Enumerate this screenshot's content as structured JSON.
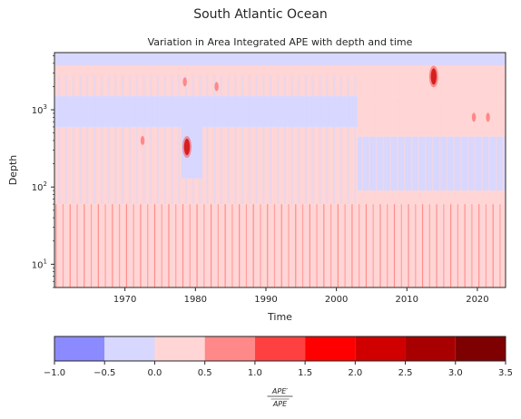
{
  "figure": {
    "suptitle": "South Atlantic Ocean"
  },
  "chart_data": {
    "type": "heatmap",
    "title": "Variation in Area Integrated APE with depth and time",
    "xlabel": "Time",
    "ylabel": "Depth",
    "x_ticks": [
      "1970",
      "1980",
      "1990",
      "2000",
      "2010",
      "2020"
    ],
    "x_tick_values": [
      1970,
      1980,
      1990,
      2000,
      2010,
      2020
    ],
    "xlim": [
      1960,
      2024
    ],
    "y_scale": "log",
    "y_ticks": [
      "10^1",
      "10^2",
      "10^3"
    ],
    "y_tick_values": [
      10,
      100,
      1000
    ],
    "ylim": [
      5,
      5500
    ],
    "colorbar": {
      "label": "APE′ / APE (overlined)",
      "label_numerator": "APE′",
      "label_denominator": "APE",
      "levels": [
        -1.0,
        -0.5,
        0.0,
        0.5,
        1.0,
        1.5,
        2.0,
        2.5,
        3.0,
        3.5
      ],
      "tick_labels": [
        "−1.0",
        "−0.5",
        "0.0",
        "0.5",
        "1.0",
        "1.5",
        "2.0",
        "2.5",
        "3.0",
        "3.5"
      ],
      "colors": [
        "#8b8bff",
        "#d7d7ff",
        "#ffd5d5",
        "#ff8888",
        "#ff4040",
        "#ff0000",
        "#d00000",
        "#a80000",
        "#7f0000"
      ]
    },
    "regions": [
      {
        "t0": 1960,
        "t1": 2024,
        "d0": 5,
        "d1": 60,
        "value": 0.25
      },
      {
        "t0": 1960,
        "t1": 2003,
        "d0": 60,
        "d1": 600,
        "value": 0.25
      },
      {
        "t0": 1960,
        "t1": 2003,
        "d0": 600,
        "d1": 1500,
        "value": -0.25
      },
      {
        "t0": 1960,
        "t1": 2024,
        "d0": 1500,
        "d1": 5500,
        "value": 0.25
      },
      {
        "t0": 2003,
        "t1": 2024,
        "d0": 60,
        "d1": 90,
        "value": 0.25
      },
      {
        "t0": 2003,
        "t1": 2024,
        "d0": 90,
        "d1": 450,
        "value": -0.25
      },
      {
        "t0": 2003,
        "t1": 2024,
        "d0": 450,
        "d1": 1500,
        "value": 0.25
      },
      {
        "t0": 1960,
        "t1": 2024,
        "d0": 3800,
        "d1": 5500,
        "value": -0.25
      },
      {
        "t0": 1978,
        "t1": 1981,
        "d0": 130,
        "d1": 600,
        "value": -0.25
      }
    ],
    "hotspots": [
      {
        "t": 1978.8,
        "d": 330,
        "value": 2.6
      },
      {
        "t": 2013.8,
        "d": 2700,
        "value": 2.6
      },
      {
        "t": 1972.5,
        "d": 400,
        "value": 0.9
      },
      {
        "t": 1978.5,
        "d": 2300,
        "value": 0.9
      },
      {
        "t": 1983.0,
        "d": 2000,
        "value": 0.9
      },
      {
        "t": 2021.5,
        "d": 800,
        "value": 0.9
      },
      {
        "t": 2019.5,
        "d": 800,
        "value": 0.9
      }
    ]
  }
}
